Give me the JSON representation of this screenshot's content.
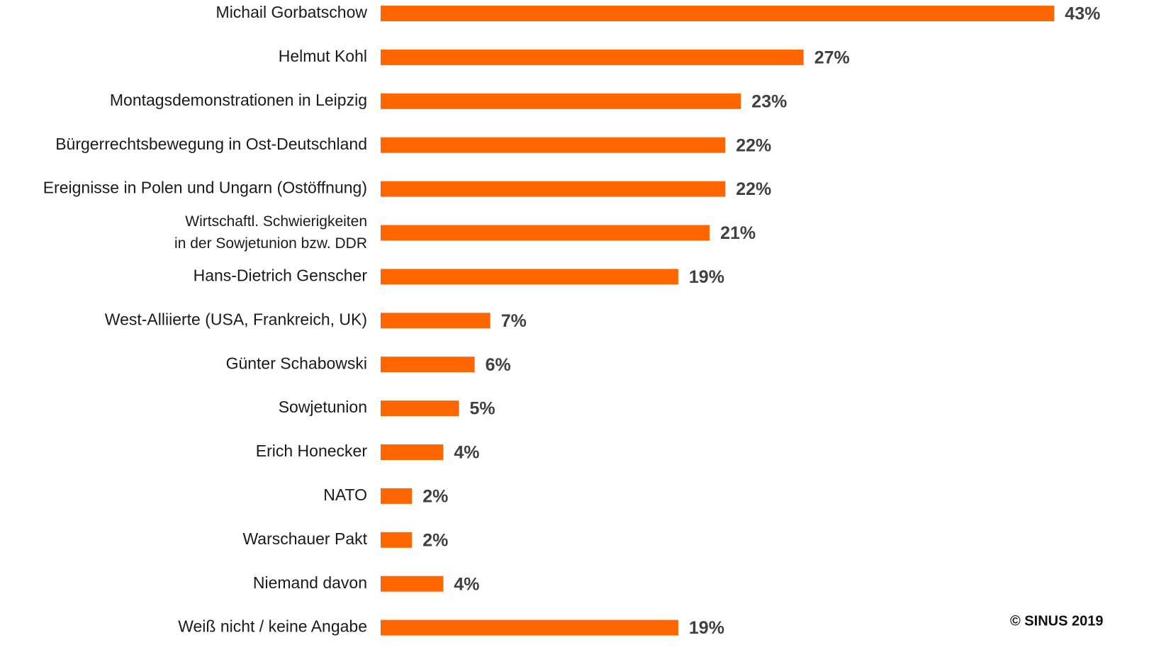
{
  "chart_data": {
    "type": "barh",
    "categories": [
      "Michail Gorbatschow",
      "Helmut Kohl",
      "Montagsdemonstrationen in Leipzig",
      "Bürgerrechtsbewegung in Ost-Deutschland",
      "Ereignisse in Polen und Ungarn (Ostöffnung)",
      "Wirtschaftl. Schwierigkeiten\nin der Sowjetunion bzw. DDR",
      "Hans-Dietrich Genscher",
      "West-Alliierte (USA, Frankreich, UK)",
      "Günter Schabowski",
      "Sowjetunion",
      "Erich Honecker",
      "NATO",
      "Warschauer Pakt",
      "Niemand davon",
      "Weiß nicht / keine Angabe"
    ],
    "values": [
      43,
      27,
      23,
      22,
      22,
      21,
      19,
      7,
      6,
      5,
      4,
      2,
      2,
      4,
      19
    ],
    "value_labels": [
      "43%",
      "27%",
      "23%",
      "22%",
      "22%",
      "21%",
      "19%",
      "7%",
      "6%",
      "5%",
      "4%",
      "2%",
      "2%",
      "4%",
      "19%"
    ],
    "color": "#ff6600",
    "source": "© SINUS 2019"
  }
}
